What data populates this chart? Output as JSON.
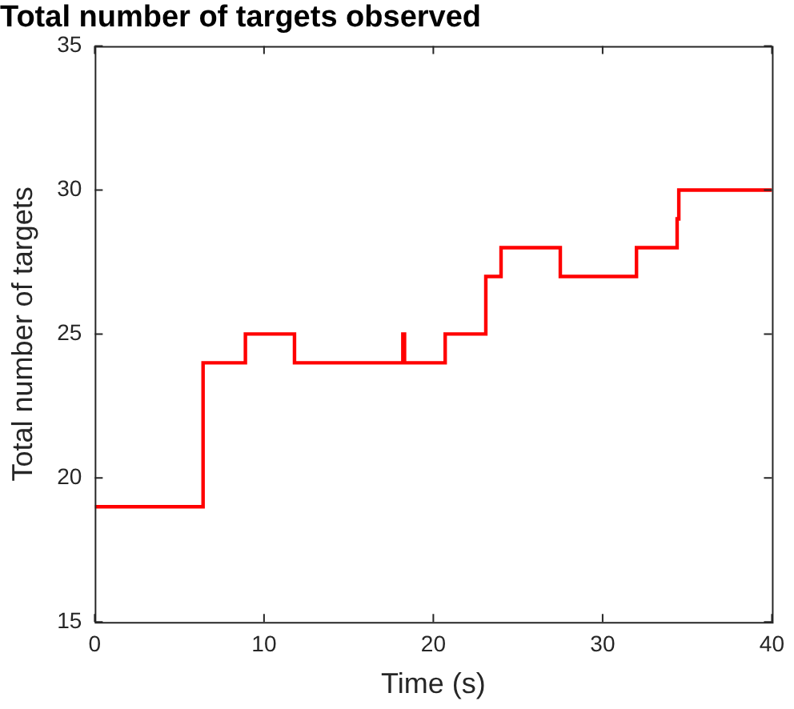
{
  "chart_data": {
    "type": "step",
    "title": "Total number of targets observed",
    "xlabel": "Time (s)",
    "ylabel": "Total number of targets",
    "x": [
      0,
      6.4,
      8.9,
      11.8,
      18.2,
      18.3,
      20.7,
      23.1,
      24,
      27.5,
      32,
      34.4,
      34.5,
      40
    ],
    "series": [
      {
        "color": "#ff0000",
        "values": [
          19,
          24,
          25,
          24,
          25,
          24,
          25,
          27,
          28,
          27,
          28,
          29,
          30,
          30
        ]
      }
    ],
    "xlim": [
      0,
      40
    ],
    "xticks": [
      0,
      10,
      20,
      30,
      40
    ],
    "ylim": [
      15,
      35
    ],
    "yticks": [
      15,
      20,
      25,
      30,
      35
    ],
    "grid": false,
    "legend": false
  }
}
